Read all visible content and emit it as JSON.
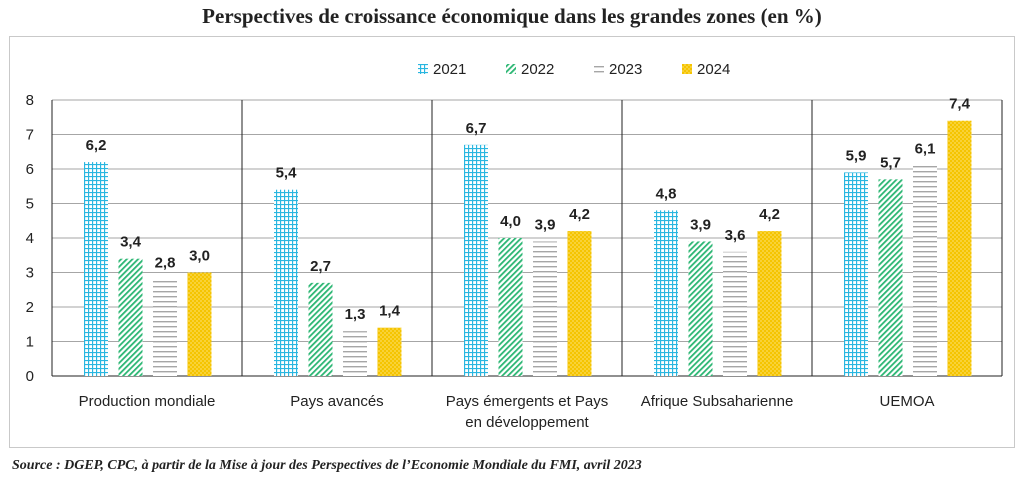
{
  "chart_data": {
    "type": "bar",
    "title": "Perspectives de croissance économique dans les grandes zones (en %)",
    "categories": [
      "Production mondiale",
      "Pays avancés",
      "Pays émergents et Pays en développement",
      "Afrique Subsaharienne",
      "UEMOA"
    ],
    "series": [
      {
        "name": "2021",
        "values": [
          6.2,
          5.4,
          6.7,
          4.8,
          5.9
        ],
        "labels": [
          "6,2",
          "5,4",
          "6,7",
          "4,8",
          "5,9"
        ],
        "color": "#29b6e0",
        "pattern": "grid"
      },
      {
        "name": "2022",
        "values": [
          3.4,
          2.7,
          4.0,
          3.9,
          5.7
        ],
        "labels": [
          "3,4",
          "2,7",
          "4,0",
          "3,9",
          "5,7"
        ],
        "color": "#2bb673",
        "pattern": "diagonal"
      },
      {
        "name": "2023",
        "values": [
          2.8,
          1.3,
          3.9,
          3.6,
          6.1
        ],
        "labels": [
          "2,8",
          "1,3",
          "3,9",
          "3,6",
          "6,1"
        ],
        "color": "#a6a6a6",
        "pattern": "horizontal"
      },
      {
        "name": "2024",
        "values": [
          3.0,
          1.4,
          4.2,
          4.2,
          7.4
        ],
        "labels": [
          "3,0",
          "1,4",
          "4,2",
          "4,2",
          "7,4"
        ],
        "color": "#f5c400",
        "pattern": "dots"
      }
    ],
    "ylim": [
      0,
      8
    ],
    "yticks": [
      "0",
      "1",
      "2",
      "3",
      "4",
      "5",
      "6",
      "7",
      "8"
    ],
    "grid": true,
    "legend_position": "top-center",
    "source": "Source : DGEP, CPC, à partir de la Mise à jour des Perspectives de l’Economie Mondiale du FMI, avril 2023"
  }
}
